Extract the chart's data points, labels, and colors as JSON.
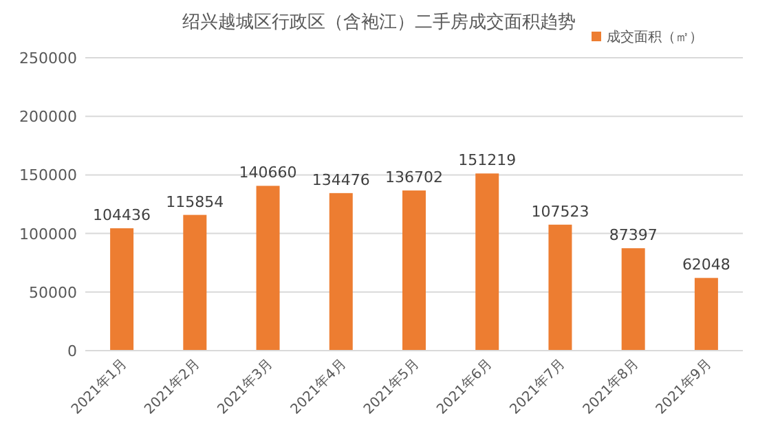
{
  "chart_data": {
    "type": "bar",
    "title": "绍兴越城区行政区（含袍江）二手房成交面积趋势",
    "categories": [
      "2021年1月",
      "2021年2月",
      "2021年3月",
      "2021年4月",
      "2021年5月",
      "2021年6月",
      "2021年7月",
      "2021年8月",
      "2021年9月"
    ],
    "series": [
      {
        "name": "成交面积（㎡）",
        "color": "#ed7d31",
        "values": [
          104436,
          115854,
          140660,
          134476,
          136702,
          151219,
          107523,
          87397,
          62048
        ]
      }
    ],
    "ylim": [
      0,
      250000
    ],
    "yticks": [
      0,
      50000,
      100000,
      150000,
      200000,
      250000
    ],
    "grid": "y",
    "legend": "top right",
    "data_labels": true
  }
}
